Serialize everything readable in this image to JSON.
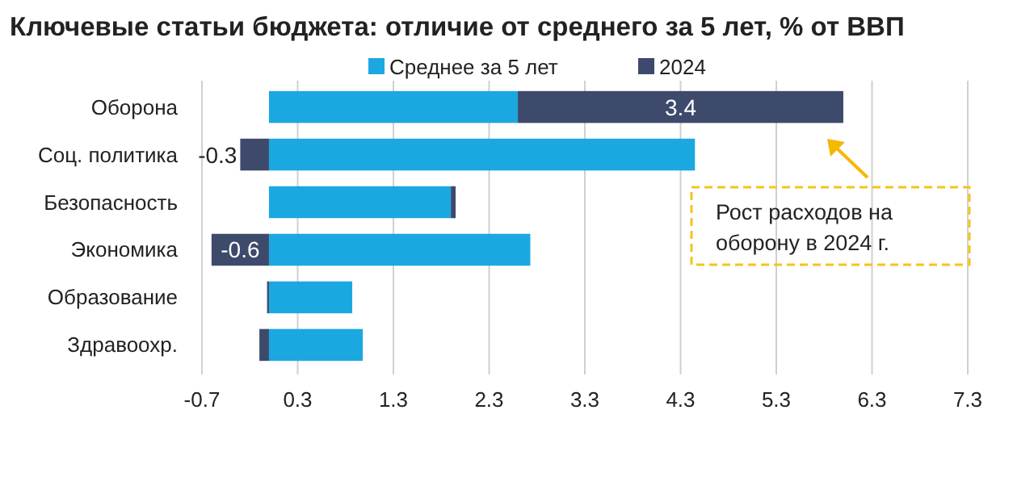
{
  "chart_data": {
    "type": "bar",
    "orientation": "horizontal",
    "stacked": true,
    "title": "Ключевые статьи бюджета: отличие от среднего за 5 лет, % от ВВП",
    "categories": [
      "Оборона",
      "Соц. политика",
      "Безопасность",
      "Экономика",
      "Образование",
      "Здравоохр."
    ],
    "series": [
      {
        "name": "Среднее за 5 лет",
        "color": "#1ba8e0",
        "values": [
          2.6,
          4.45,
          1.9,
          2.73,
          0.87,
          0.98
        ]
      },
      {
        "name": "2024",
        "color": "#3d4a6b",
        "values": [
          3.4,
          -0.3,
          0.05,
          -0.6,
          -0.02,
          -0.1
        ],
        "value_labels": [
          "3.4",
          "-0.3",
          null,
          "-0.6",
          null,
          null
        ]
      }
    ],
    "xlim": [
      -0.7,
      7.3
    ],
    "xticks": [
      -0.7,
      0.3,
      1.3,
      2.3,
      3.3,
      4.3,
      5.3,
      6.3,
      7.3
    ],
    "grid": "x",
    "legend": "top",
    "annotations": [
      "Рост расходов на оборону в 2024 г."
    ]
  }
}
